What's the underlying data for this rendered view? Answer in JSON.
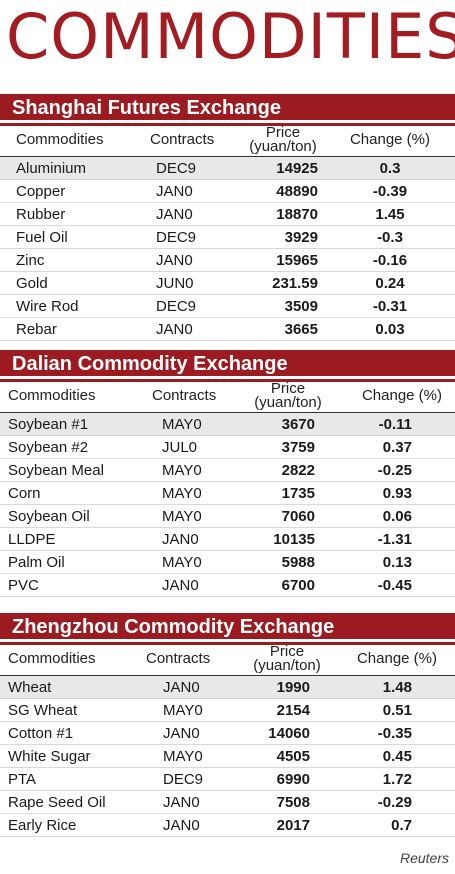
{
  "title": "COMMODITIES",
  "headers": {
    "commodities": "Commodities",
    "contracts": "Contracts",
    "price_line1": "Price",
    "price_line2": "(yuan/ton)",
    "change": "Change (%)"
  },
  "sections": [
    {
      "name": "Shanghai Futures Exchange",
      "rows": [
        {
          "commodity": "Aluminium",
          "contract": "DEC9",
          "price": "14925",
          "change": "0.3"
        },
        {
          "commodity": "Copper",
          "contract": "JAN0",
          "price": "48890",
          "change": "-0.39"
        },
        {
          "commodity": "Rubber",
          "contract": "JAN0",
          "price": "18870",
          "change": "1.45"
        },
        {
          "commodity": "Fuel Oil",
          "contract": "DEC9",
          "price": "3929",
          "change": "-0.3"
        },
        {
          "commodity": "Zinc",
          "contract": "JAN0",
          "price": "15965",
          "change": "-0.16"
        },
        {
          "commodity": "Gold",
          "contract": "JUN0",
          "price": "231.59",
          "change": "0.24"
        },
        {
          "commodity": "Wire Rod",
          "contract": "DEC9",
          "price": "3509",
          "change": "-0.31"
        },
        {
          "commodity": "Rebar",
          "contract": "JAN0",
          "price": "3665",
          "change": "0.03"
        }
      ]
    },
    {
      "name": "Dalian Commodity Exchange",
      "rows": [
        {
          "commodity": "Soybean #1",
          "contract": "MAY0",
          "price": "3670",
          "change": "-0.11"
        },
        {
          "commodity": "Soybean #2",
          "contract": "JUL0",
          "price": "3759",
          "change": "0.37"
        },
        {
          "commodity": "Soybean Meal",
          "contract": "MAY0",
          "price": "2822",
          "change": "-0.25"
        },
        {
          "commodity": "Corn",
          "contract": "MAY0",
          "price": "1735",
          "change": "0.93"
        },
        {
          "commodity": "Soybean Oil",
          "contract": "MAY0",
          "price": "7060",
          "change": "0.06"
        },
        {
          "commodity": "LLDPE",
          "contract": "JAN0",
          "price": "10135",
          "change": "-1.31"
        },
        {
          "commodity": "Palm Oil",
          "contract": "MAY0",
          "price": "5988",
          "change": "0.13"
        },
        {
          "commodity": "PVC",
          "contract": "JAN0",
          "price": "6700",
          "change": "-0.45"
        }
      ]
    },
    {
      "name": "Zhengzhou Commodity Exchange",
      "rows": [
        {
          "commodity": "Wheat",
          "contract": "JAN0",
          "price": "1990",
          "change": "1.48"
        },
        {
          "commodity": "SG Wheat",
          "contract": "MAY0",
          "price": "2154",
          "change": "0.51"
        },
        {
          "commodity": "Cotton #1",
          "contract": "JAN0",
          "price": "14060",
          "change": "-0.35"
        },
        {
          "commodity": "White Sugar",
          "contract": "MAY0",
          "price": "4505",
          "change": "0.45"
        },
        {
          "commodity": "PTA",
          "contract": "DEC9",
          "price": "6990",
          "change": "1.72"
        },
        {
          "commodity": "Rape Seed Oil",
          "contract": "JAN0",
          "price": "7508",
          "change": "-0.29"
        },
        {
          "commodity": "Early Rice",
          "contract": "JAN0",
          "price": "2017",
          "change": "0.7"
        }
      ]
    }
  ],
  "source": "Reuters",
  "colors": {
    "accent": "#9c1b20",
    "title": "#a31c22"
  }
}
